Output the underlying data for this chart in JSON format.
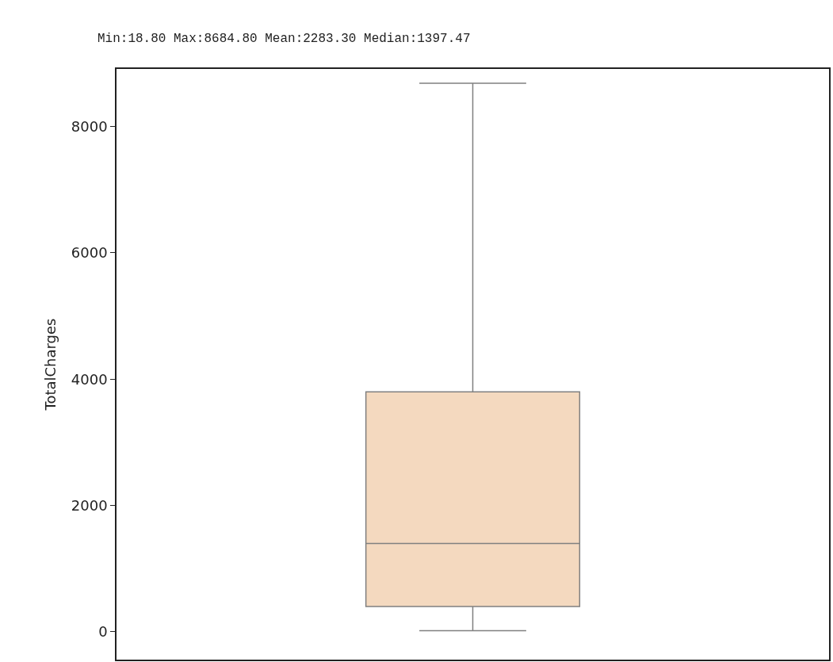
{
  "chart_data": {
    "type": "box",
    "title": "Min:18.80 Max:8684.80 Mean:2283.30 Median:1397.47",
    "ylabel": "TotalCharges",
    "categories": [
      null
    ],
    "boxes": [
      {
        "low": 18.8,
        "q1": 400,
        "median": 1397.47,
        "q3": 3800,
        "high": 8684.8
      }
    ],
    "color": "#f4d9bf",
    "ylim": [
      -440,
      8910
    ],
    "yticks": [
      0,
      2000,
      4000,
      6000,
      8000
    ],
    "tick_labels": "y"
  }
}
